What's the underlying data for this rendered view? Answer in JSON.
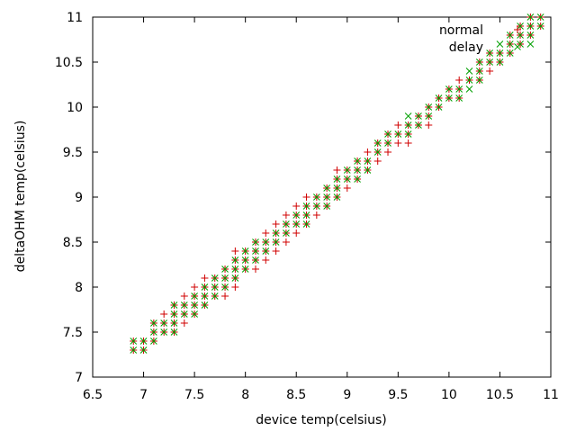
{
  "chart_data": {
    "type": "scatter",
    "xlabel": "device temp(celsius)",
    "ylabel": "deltaOHM temp(celsius)",
    "xlim": [
      6.5,
      11
    ],
    "ylim": [
      7,
      11
    ],
    "xticks": [
      "6.5",
      "7",
      "7.5",
      "8",
      "8.5",
      "9",
      "9.5",
      "10",
      "10.5",
      "11"
    ],
    "yticks": [
      "7",
      "7.5",
      "8",
      "8.5",
      "9",
      "9.5",
      "10",
      "10.5",
      "11"
    ],
    "grid": false,
    "legend_position": "top-right",
    "series": [
      {
        "name": "normal",
        "marker": "plus",
        "color": "#d00000",
        "points": [
          [
            6.9,
            7.3
          ],
          [
            6.9,
            7.4
          ],
          [
            7.0,
            7.3
          ],
          [
            7.0,
            7.4
          ],
          [
            7.1,
            7.4
          ],
          [
            7.1,
            7.5
          ],
          [
            7.1,
            7.6
          ],
          [
            7.2,
            7.5
          ],
          [
            7.2,
            7.6
          ],
          [
            7.2,
            7.7
          ],
          [
            7.3,
            7.5
          ],
          [
            7.3,
            7.6
          ],
          [
            7.3,
            7.7
          ],
          [
            7.3,
            7.8
          ],
          [
            7.4,
            7.6
          ],
          [
            7.4,
            7.7
          ],
          [
            7.4,
            7.8
          ],
          [
            7.4,
            7.9
          ],
          [
            7.5,
            7.7
          ],
          [
            7.5,
            7.8
          ],
          [
            7.5,
            7.9
          ],
          [
            7.5,
            8.0
          ],
          [
            7.6,
            7.8
          ],
          [
            7.6,
            7.9
          ],
          [
            7.6,
            8.0
          ],
          [
            7.6,
            8.1
          ],
          [
            7.7,
            7.9
          ],
          [
            7.7,
            8.0
          ],
          [
            7.7,
            8.1
          ],
          [
            7.8,
            7.9
          ],
          [
            7.8,
            8.0
          ],
          [
            7.8,
            8.1
          ],
          [
            7.8,
            8.2
          ],
          [
            7.9,
            8.0
          ],
          [
            7.9,
            8.1
          ],
          [
            7.9,
            8.2
          ],
          [
            7.9,
            8.3
          ],
          [
            7.9,
            8.4
          ],
          [
            8.0,
            8.2
          ],
          [
            8.0,
            8.3
          ],
          [
            8.0,
            8.4
          ],
          [
            8.1,
            8.2
          ],
          [
            8.1,
            8.3
          ],
          [
            8.1,
            8.4
          ],
          [
            8.1,
            8.5
          ],
          [
            8.2,
            8.3
          ],
          [
            8.2,
            8.4
          ],
          [
            8.2,
            8.5
          ],
          [
            8.2,
            8.6
          ],
          [
            8.3,
            8.4
          ],
          [
            8.3,
            8.5
          ],
          [
            8.3,
            8.6
          ],
          [
            8.3,
            8.7
          ],
          [
            8.4,
            8.5
          ],
          [
            8.4,
            8.6
          ],
          [
            8.4,
            8.7
          ],
          [
            8.4,
            8.8
          ],
          [
            8.5,
            8.6
          ],
          [
            8.5,
            8.7
          ],
          [
            8.5,
            8.8
          ],
          [
            8.5,
            8.9
          ],
          [
            8.6,
            8.7
          ],
          [
            8.6,
            8.8
          ],
          [
            8.6,
            8.9
          ],
          [
            8.6,
            9.0
          ],
          [
            8.7,
            8.8
          ],
          [
            8.7,
            8.9
          ],
          [
            8.7,
            9.0
          ],
          [
            8.8,
            8.9
          ],
          [
            8.8,
            9.0
          ],
          [
            8.8,
            9.1
          ],
          [
            8.9,
            9.0
          ],
          [
            8.9,
            9.1
          ],
          [
            8.9,
            9.2
          ],
          [
            8.9,
            9.3
          ],
          [
            9.0,
            9.1
          ],
          [
            9.0,
            9.2
          ],
          [
            9.0,
            9.3
          ],
          [
            9.1,
            9.2
          ],
          [
            9.1,
            9.3
          ],
          [
            9.1,
            9.4
          ],
          [
            9.2,
            9.3
          ],
          [
            9.2,
            9.4
          ],
          [
            9.2,
            9.5
          ],
          [
            9.3,
            9.4
          ],
          [
            9.3,
            9.5
          ],
          [
            9.3,
            9.6
          ],
          [
            9.4,
            9.5
          ],
          [
            9.4,
            9.6
          ],
          [
            9.4,
            9.7
          ],
          [
            9.5,
            9.6
          ],
          [
            9.5,
            9.7
          ],
          [
            9.5,
            9.8
          ],
          [
            9.6,
            9.6
          ],
          [
            9.6,
            9.7
          ],
          [
            9.6,
            9.8
          ],
          [
            9.7,
            9.8
          ],
          [
            9.7,
            9.9
          ],
          [
            9.8,
            9.8
          ],
          [
            9.8,
            9.9
          ],
          [
            9.8,
            10.0
          ],
          [
            9.9,
            10.0
          ],
          [
            9.9,
            10.1
          ],
          [
            10.0,
            10.1
          ],
          [
            10.0,
            10.2
          ],
          [
            10.1,
            10.1
          ],
          [
            10.1,
            10.2
          ],
          [
            10.1,
            10.3
          ],
          [
            10.2,
            10.3
          ],
          [
            10.3,
            10.3
          ],
          [
            10.3,
            10.4
          ],
          [
            10.3,
            10.5
          ],
          [
            10.4,
            10.4
          ],
          [
            10.4,
            10.5
          ],
          [
            10.4,
            10.6
          ],
          [
            10.5,
            10.5
          ],
          [
            10.5,
            10.6
          ],
          [
            10.6,
            10.6
          ],
          [
            10.6,
            10.7
          ],
          [
            10.6,
            10.8
          ],
          [
            10.7,
            10.7
          ],
          [
            10.7,
            10.8
          ],
          [
            10.7,
            10.9
          ],
          [
            10.8,
            10.8
          ],
          [
            10.8,
            10.9
          ],
          [
            10.8,
            11.0
          ],
          [
            10.9,
            10.9
          ],
          [
            10.9,
            11.0
          ]
        ]
      },
      {
        "name": "delay",
        "marker": "cross",
        "color": "#00a000",
        "points": [
          [
            6.9,
            7.3
          ],
          [
            6.9,
            7.4
          ],
          [
            7.0,
            7.3
          ],
          [
            7.0,
            7.4
          ],
          [
            7.1,
            7.4
          ],
          [
            7.1,
            7.5
          ],
          [
            7.1,
            7.6
          ],
          [
            7.2,
            7.5
          ],
          [
            7.2,
            7.6
          ],
          [
            7.3,
            7.5
          ],
          [
            7.3,
            7.6
          ],
          [
            7.3,
            7.7
          ],
          [
            7.3,
            7.8
          ],
          [
            7.4,
            7.7
          ],
          [
            7.4,
            7.8
          ],
          [
            7.5,
            7.7
          ],
          [
            7.5,
            7.8
          ],
          [
            7.5,
            7.9
          ],
          [
            7.6,
            7.8
          ],
          [
            7.6,
            7.9
          ],
          [
            7.6,
            8.0
          ],
          [
            7.7,
            7.9
          ],
          [
            7.7,
            8.0
          ],
          [
            7.7,
            8.1
          ],
          [
            7.8,
            8.0
          ],
          [
            7.8,
            8.1
          ],
          [
            7.8,
            8.2
          ],
          [
            7.9,
            8.1
          ],
          [
            7.9,
            8.2
          ],
          [
            7.9,
            8.3
          ],
          [
            8.0,
            8.2
          ],
          [
            8.0,
            8.3
          ],
          [
            8.0,
            8.4
          ],
          [
            8.1,
            8.3
          ],
          [
            8.1,
            8.4
          ],
          [
            8.1,
            8.5
          ],
          [
            8.2,
            8.4
          ],
          [
            8.2,
            8.5
          ],
          [
            8.3,
            8.5
          ],
          [
            8.3,
            8.6
          ],
          [
            8.4,
            8.6
          ],
          [
            8.4,
            8.7
          ],
          [
            8.5,
            8.7
          ],
          [
            8.5,
            8.8
          ],
          [
            8.6,
            8.7
          ],
          [
            8.6,
            8.8
          ],
          [
            8.6,
            8.9
          ],
          [
            8.7,
            8.9
          ],
          [
            8.7,
            9.0
          ],
          [
            8.8,
            8.9
          ],
          [
            8.8,
            9.0
          ],
          [
            8.8,
            9.1
          ],
          [
            8.9,
            9.0
          ],
          [
            8.9,
            9.1
          ],
          [
            8.9,
            9.2
          ],
          [
            9.0,
            9.2
          ],
          [
            9.0,
            9.3
          ],
          [
            9.1,
            9.2
          ],
          [
            9.1,
            9.3
          ],
          [
            9.1,
            9.4
          ],
          [
            9.2,
            9.3
          ],
          [
            9.2,
            9.4
          ],
          [
            9.3,
            9.5
          ],
          [
            9.3,
            9.6
          ],
          [
            9.4,
            9.6
          ],
          [
            9.4,
            9.7
          ],
          [
            9.5,
            9.7
          ],
          [
            9.6,
            9.7
          ],
          [
            9.6,
            9.8
          ],
          [
            9.6,
            9.9
          ],
          [
            9.7,
            9.8
          ],
          [
            9.7,
            9.9
          ],
          [
            9.8,
            9.9
          ],
          [
            9.8,
            10.0
          ],
          [
            9.9,
            10.0
          ],
          [
            9.9,
            10.1
          ],
          [
            10.0,
            10.1
          ],
          [
            10.0,
            10.2
          ],
          [
            10.1,
            10.1
          ],
          [
            10.1,
            10.2
          ],
          [
            10.2,
            10.2
          ],
          [
            10.2,
            10.3
          ],
          [
            10.2,
            10.4
          ],
          [
            10.3,
            10.3
          ],
          [
            10.3,
            10.4
          ],
          [
            10.3,
            10.5
          ],
          [
            10.4,
            10.5
          ],
          [
            10.4,
            10.6
          ],
          [
            10.5,
            10.5
          ],
          [
            10.5,
            10.6
          ],
          [
            10.5,
            10.7
          ],
          [
            10.6,
            10.6
          ],
          [
            10.6,
            10.7
          ],
          [
            10.6,
            10.8
          ],
          [
            10.7,
            10.7
          ],
          [
            10.7,
            10.8
          ],
          [
            10.7,
            10.9
          ],
          [
            10.8,
            10.7
          ],
          [
            10.8,
            10.8
          ],
          [
            10.8,
            10.9
          ],
          [
            10.8,
            11.0
          ],
          [
            10.9,
            10.9
          ],
          [
            10.9,
            11.0
          ]
        ]
      }
    ]
  }
}
